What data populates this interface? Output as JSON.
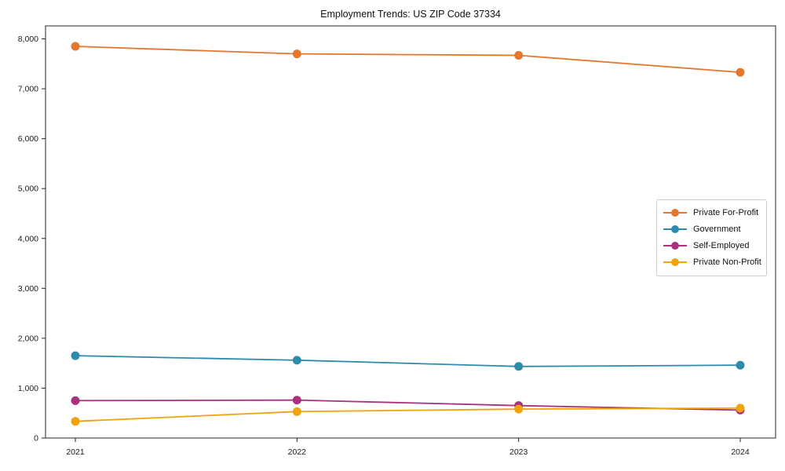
{
  "chart_data": {
    "type": "line",
    "title": "Employment Trends: US ZIP Code 37334",
    "categories": [
      "2021",
      "2022",
      "2023",
      "2024"
    ],
    "series": [
      {
        "name": "Private For-Profit",
        "color": "#e5762e",
        "values": [
          7850,
          7700,
          7670,
          7330
        ]
      },
      {
        "name": "Government",
        "color": "#2e8bab",
        "values": [
          1650,
          1560,
          1435,
          1460
        ]
      },
      {
        "name": "Self-Employed",
        "color": "#a8327e",
        "values": [
          750,
          760,
          650,
          560
        ]
      },
      {
        "name": "Private Non-Profit",
        "color": "#f0a30a",
        "values": [
          335,
          530,
          580,
          600
        ]
      }
    ],
    "xlabel": "",
    "ylabel": "",
    "ylim": [
      0,
      8260
    ],
    "ytick_values": [
      0,
      1000,
      2000,
      3000,
      4000,
      5000,
      6000,
      7000,
      8000
    ],
    "ytick_labels": [
      "0",
      "1,000",
      "2,000",
      "3,000",
      "4,000",
      "5,000",
      "6,000",
      "7,000",
      "8,000"
    ],
    "grid": false,
    "marker": "circle",
    "legend_position": "center-right",
    "axis_color": "#262626",
    "tick_label_color": "#1a1a1a"
  }
}
